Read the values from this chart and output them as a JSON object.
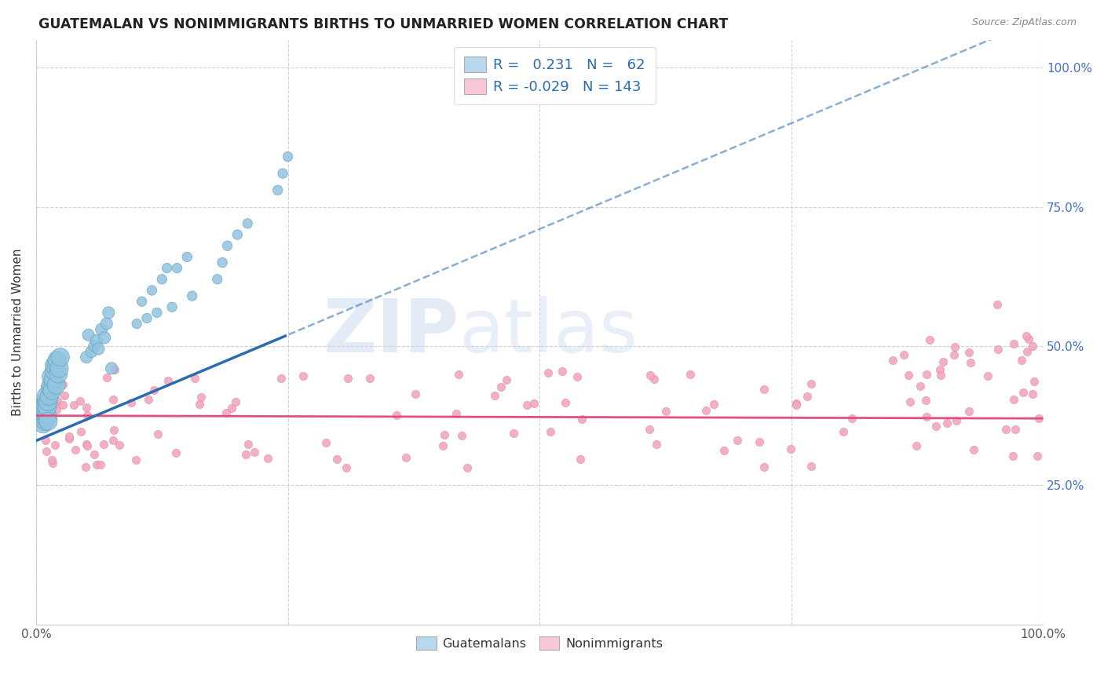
{
  "title": "GUATEMALAN VS NONIMMIGRANTS BIRTHS TO UNMARRIED WOMEN CORRELATION CHART",
  "source": "Source: ZipAtlas.com",
  "ylabel": "Births to Unmarried Women",
  "right_yticks": [
    "100.0%",
    "75.0%",
    "50.0%",
    "25.0%"
  ],
  "right_ytick_vals": [
    1.0,
    0.75,
    0.5,
    0.25
  ],
  "guatemalan_R": "0.231",
  "guatemalan_N": "62",
  "nonimmigrant_R": "-0.029",
  "nonimmigrant_N": "143",
  "blue_color": "#93c4e0",
  "blue_edge_color": "#5a9fc0",
  "blue_line_color": "#2b6cb0",
  "pink_color": "#f4a7be",
  "pink_edge_color": "#d47090",
  "pink_line_color": "#e05080",
  "legend_blue_fill": "#b8d8ee",
  "legend_pink_fill": "#f8c8d8",
  "watermark_color": "#c8d8ee"
}
